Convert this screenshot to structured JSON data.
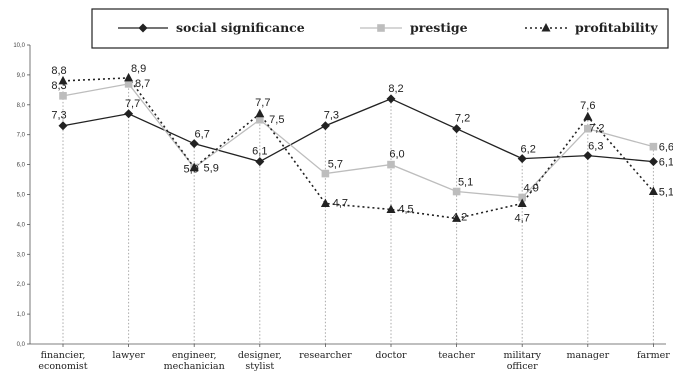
{
  "chart_data": {
    "type": "line",
    "categories": [
      [
        "financier,",
        "economist"
      ],
      [
        "lawyer"
      ],
      [
        "engineer,",
        "mechanician"
      ],
      [
        "designer,",
        "stylist"
      ],
      [
        "researcher"
      ],
      [
        "doctor"
      ],
      [
        "teacher"
      ],
      [
        "military",
        "officer"
      ],
      [
        "manager"
      ],
      [
        "farmer"
      ]
    ],
    "series": [
      {
        "name": "social significance",
        "values": [
          7.3,
          7.7,
          6.7,
          6.1,
          7.3,
          8.2,
          7.2,
          6.2,
          6.3,
          6.1
        ],
        "labels": [
          "7,3",
          "7,7",
          "6,7",
          "6,1",
          "7,3",
          "8,2",
          "7,2",
          "6,2",
          "6,3",
          "6,1"
        ],
        "color": "#222222",
        "line": "solid",
        "marker": "diamond"
      },
      {
        "name": "prestige",
        "values": [
          8.3,
          8.7,
          5.9,
          7.5,
          5.7,
          6.0,
          5.1,
          4.9,
          7.2,
          6.6
        ],
        "labels": [
          "8,3",
          "8,7",
          "5,9",
          "7,5",
          "5,7",
          "6,0",
          "5,1",
          "4,9",
          "7,2",
          "6,6"
        ],
        "color": "#bdbdbd",
        "line": "solid",
        "marker": "square"
      },
      {
        "name": "profitability",
        "values": [
          8.8,
          8.9,
          5.9,
          7.7,
          4.7,
          4.5,
          4.2,
          4.7,
          7.6,
          5.1
        ],
        "labels": [
          "8,8",
          "8,9",
          "5,9",
          "7,7",
          "4,7",
          "4,5",
          "4,2",
          "4,7",
          "7,6",
          "5,1"
        ],
        "color": "#222222",
        "line": "dotted",
        "marker": "triangle"
      }
    ],
    "ylim": [
      0,
      10
    ],
    "yticks": [
      "0,0",
      "1,0",
      "2,0",
      "3,0",
      "4,0",
      "5,0",
      "6,0",
      "7,0",
      "8,0",
      "9,0",
      "10,0"
    ],
    "legend_position": "top",
    "grid": false,
    "drop_lines": true
  }
}
